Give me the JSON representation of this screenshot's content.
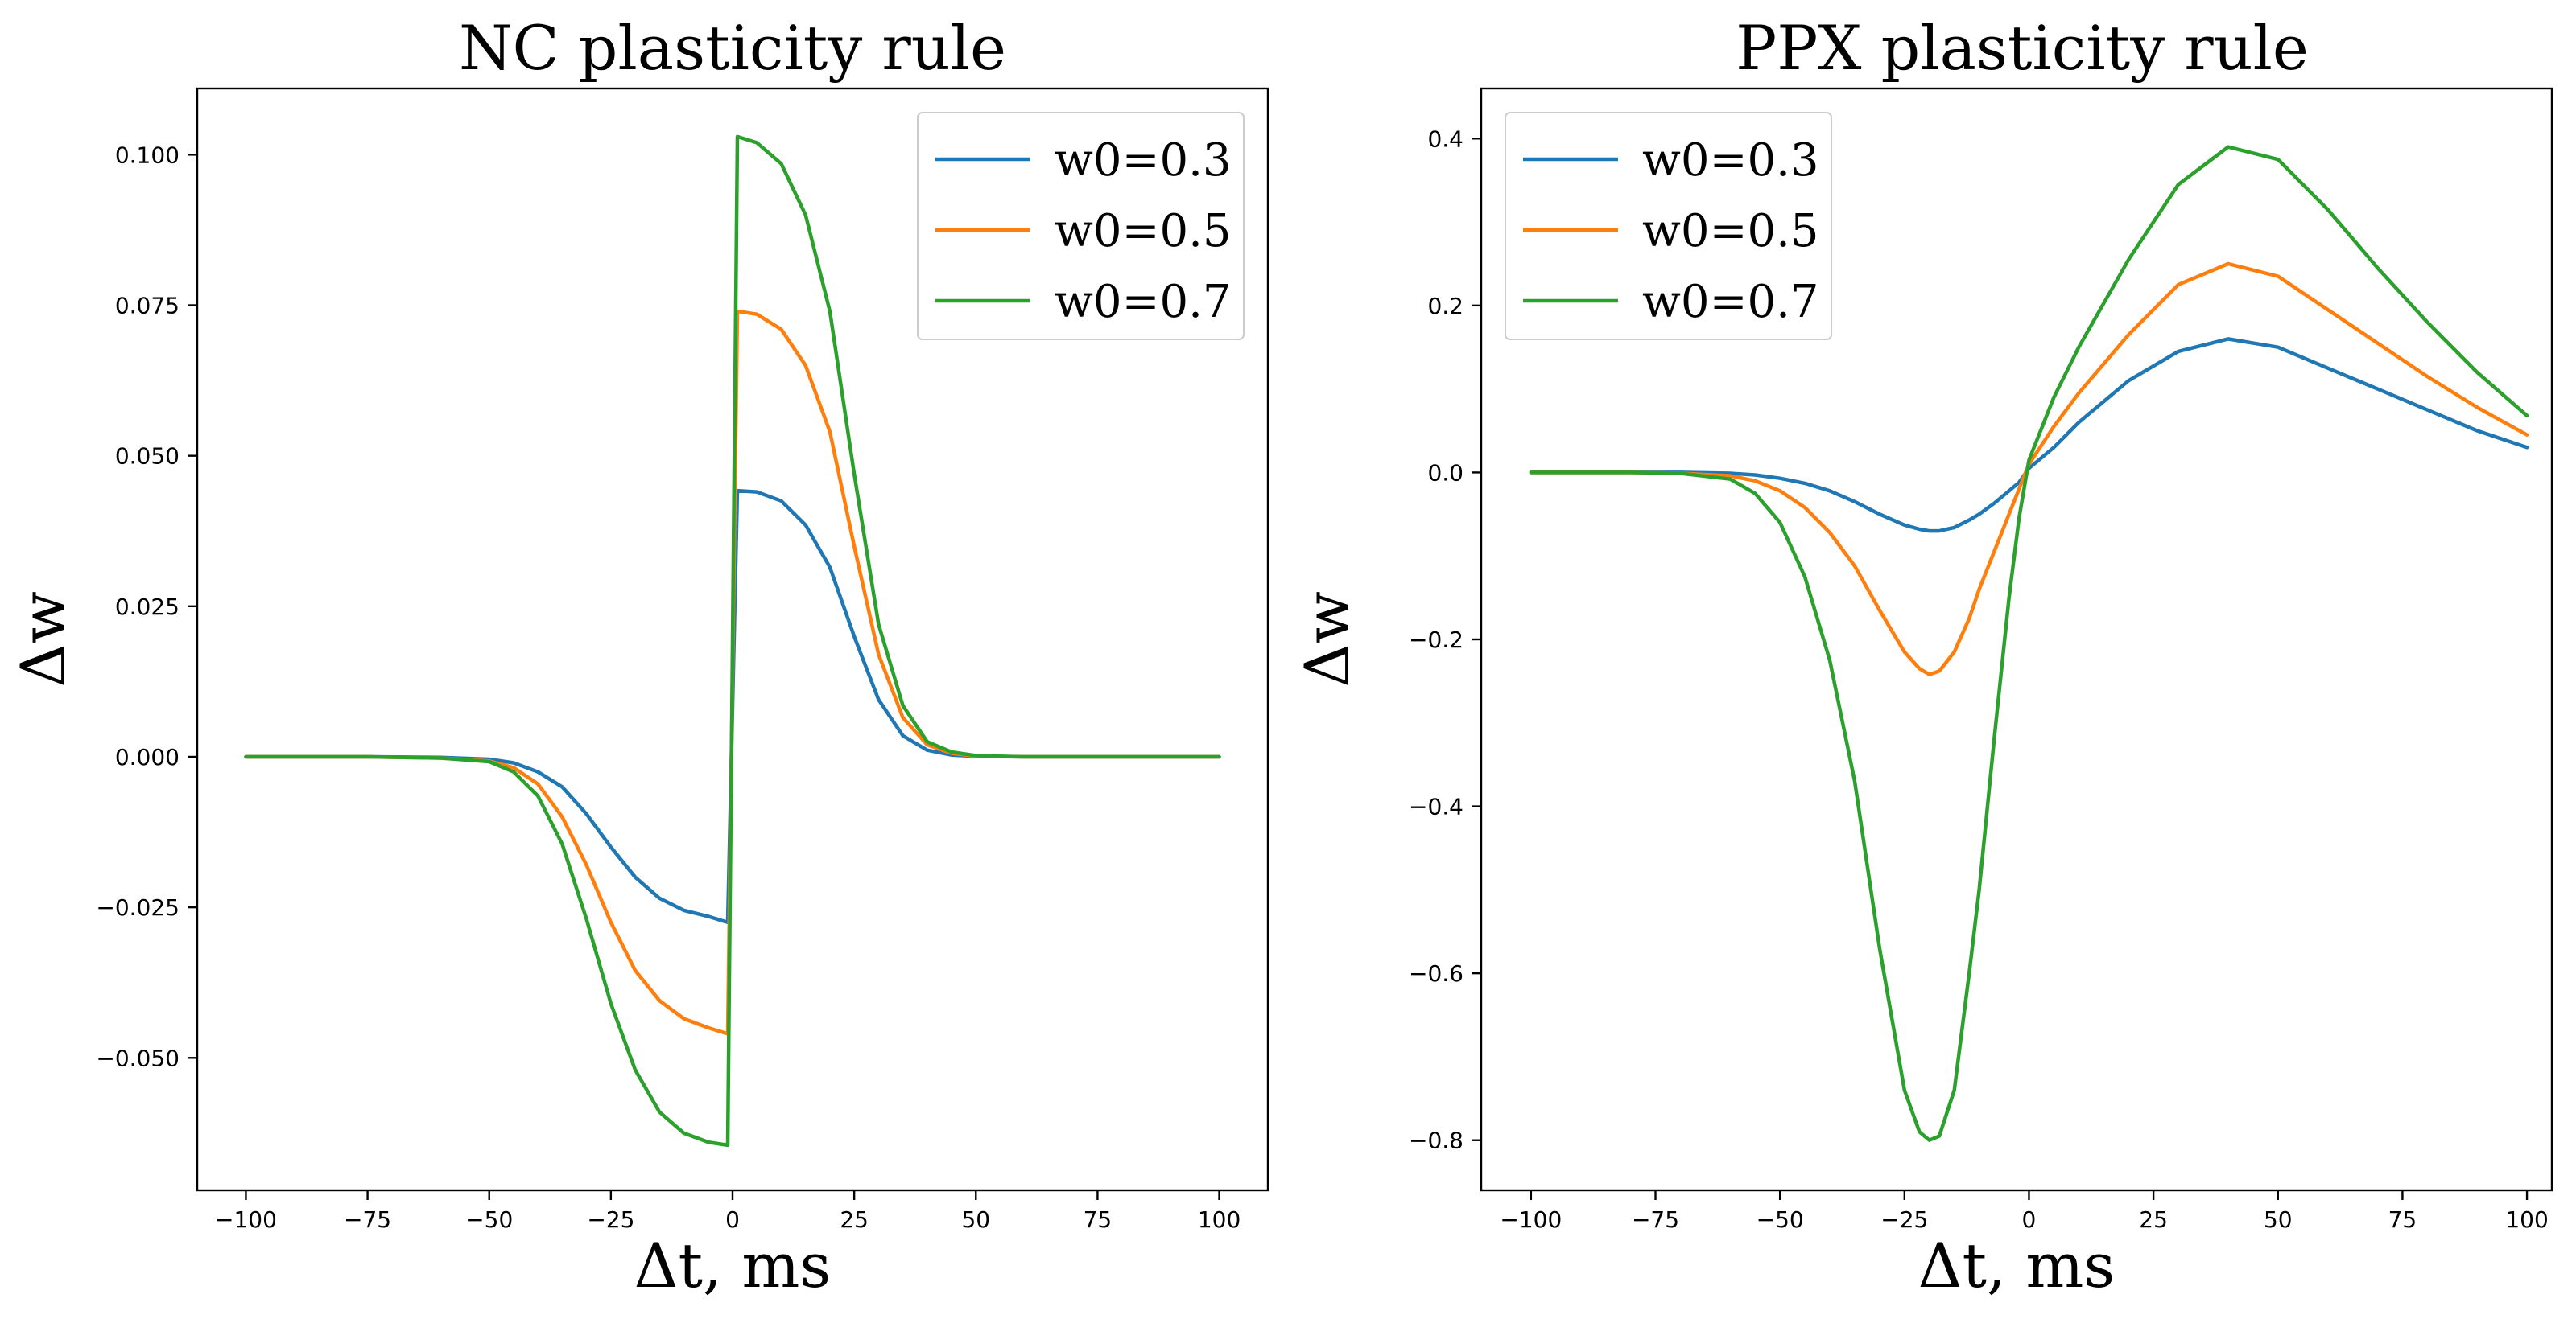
{
  "colors": {
    "series": [
      "#1f77b4",
      "#ff7f0e",
      "#2ca02c"
    ]
  },
  "chart_data": [
    {
      "type": "line",
      "title": "NC plasticity rule",
      "xlabel": "Δt, ms",
      "ylabel": "Δw",
      "xlim": [
        -110,
        110
      ],
      "ylim": [
        -0.072,
        0.111
      ],
      "xticks": [
        -100,
        -75,
        -50,
        -25,
        0,
        25,
        50,
        75,
        100
      ],
      "xtick_labels": [
        "−100",
        "−75",
        "−50",
        "−25",
        "0",
        "25",
        "50",
        "75",
        "100"
      ],
      "yticks": [
        -0.05,
        -0.025,
        0,
        0.025,
        0.05,
        0.075,
        0.1
      ],
      "ytick_labels": [
        "−0.050",
        "−0.025",
        "0.000",
        "0.025",
        "0.050",
        "0.075",
        "0.100"
      ],
      "legend_position": "top-right",
      "x": [
        -100,
        -75,
        -60,
        -50,
        -45,
        -40,
        -35,
        -30,
        -25,
        -20,
        -15,
        -10,
        -5,
        -1,
        1,
        5,
        10,
        15,
        20,
        25,
        30,
        35,
        40,
        45,
        50,
        60,
        75,
        100
      ],
      "series": [
        {
          "name": "w0=0.3",
          "values": [
            0,
            0,
            -0.0001,
            -0.0004,
            -0.001,
            -0.0025,
            -0.005,
            -0.0095,
            -0.015,
            -0.02,
            -0.0235,
            -0.0255,
            -0.0265,
            -0.0275,
            0.0442,
            0.044,
            0.0425,
            0.0385,
            0.0315,
            0.02,
            0.0095,
            0.0035,
            0.0011,
            0.0003,
            0.0001,
            0,
            0,
            0
          ]
        },
        {
          "name": "w0=0.5",
          "values": [
            0,
            0,
            -0.0002,
            -0.0007,
            -0.0018,
            -0.0045,
            -0.01,
            -0.018,
            -0.0275,
            -0.0355,
            -0.0405,
            -0.0435,
            -0.045,
            -0.046,
            0.074,
            0.0735,
            0.071,
            0.065,
            0.054,
            0.035,
            0.017,
            0.0065,
            0.002,
            0.0006,
            0.0001,
            0,
            0,
            0
          ]
        },
        {
          "name": "w0=0.7",
          "values": [
            0,
            0,
            -0.0002,
            -0.0008,
            -0.0025,
            -0.0065,
            -0.0145,
            -0.027,
            -0.041,
            -0.052,
            -0.059,
            -0.0625,
            -0.064,
            -0.0645,
            0.103,
            0.102,
            0.0985,
            0.09,
            0.074,
            0.047,
            0.022,
            0.0085,
            0.0025,
            0.0008,
            0.0002,
            0,
            0,
            0
          ]
        }
      ]
    },
    {
      "type": "line",
      "title": "PPX plasticity rule",
      "xlabel": "Δt, ms",
      "ylabel": "Δw",
      "xlim": [
        -110,
        105
      ],
      "ylim": [
        -0.86,
        0.46
      ],
      "xticks": [
        -100,
        -75,
        -50,
        -25,
        0,
        25,
        50,
        75,
        100
      ],
      "xtick_labels": [
        "−100",
        "−75",
        "−50",
        "−25",
        "0",
        "25",
        "50",
        "75",
        "100"
      ],
      "yticks": [
        -0.8,
        -0.6,
        -0.4,
        -0.2,
        0,
        0.2,
        0.4
      ],
      "ytick_labels": [
        "−0.8",
        "−0.6",
        "−0.4",
        "−0.2",
        "0.0",
        "0.2",
        "0.4"
      ],
      "legend_position": "top-left",
      "x": [
        -100,
        -80,
        -70,
        -60,
        -55,
        -50,
        -45,
        -40,
        -35,
        -30,
        -25,
        -22,
        -20,
        -18,
        -15,
        -12,
        -10,
        -7,
        -4,
        -2,
        0,
        5,
        10,
        20,
        30,
        40,
        50,
        60,
        70,
        80,
        90,
        100
      ],
      "series": [
        {
          "name": "w0=0.3",
          "values": [
            0,
            0,
            0,
            -0.001,
            -0.003,
            -0.007,
            -0.013,
            -0.022,
            -0.035,
            -0.05,
            -0.063,
            -0.068,
            -0.07,
            -0.07,
            -0.066,
            -0.057,
            -0.05,
            -0.037,
            -0.022,
            -0.012,
            0.005,
            0.03,
            0.06,
            0.11,
            0.145,
            0.16,
            0.15,
            0.125,
            0.1,
            0.075,
            0.05,
            0.03
          ]
        },
        {
          "name": "w0=0.5",
          "values": [
            0,
            0,
            -0.001,
            -0.004,
            -0.01,
            -0.022,
            -0.042,
            -0.072,
            -0.112,
            -0.165,
            -0.215,
            -0.235,
            -0.242,
            -0.238,
            -0.215,
            -0.175,
            -0.14,
            -0.095,
            -0.05,
            -0.02,
            0.01,
            0.055,
            0.095,
            0.165,
            0.225,
            0.25,
            0.235,
            0.195,
            0.155,
            0.115,
            0.078,
            0.045
          ]
        },
        {
          "name": "w0=0.7",
          "values": [
            0,
            0,
            -0.001,
            -0.008,
            -0.025,
            -0.06,
            -0.125,
            -0.225,
            -0.37,
            -0.57,
            -0.74,
            -0.79,
            -0.8,
            -0.795,
            -0.74,
            -0.6,
            -0.5,
            -0.32,
            -0.15,
            -0.055,
            0.015,
            0.09,
            0.15,
            0.255,
            0.345,
            0.39,
            0.375,
            0.315,
            0.245,
            0.18,
            0.12,
            0.068
          ]
        }
      ]
    }
  ]
}
